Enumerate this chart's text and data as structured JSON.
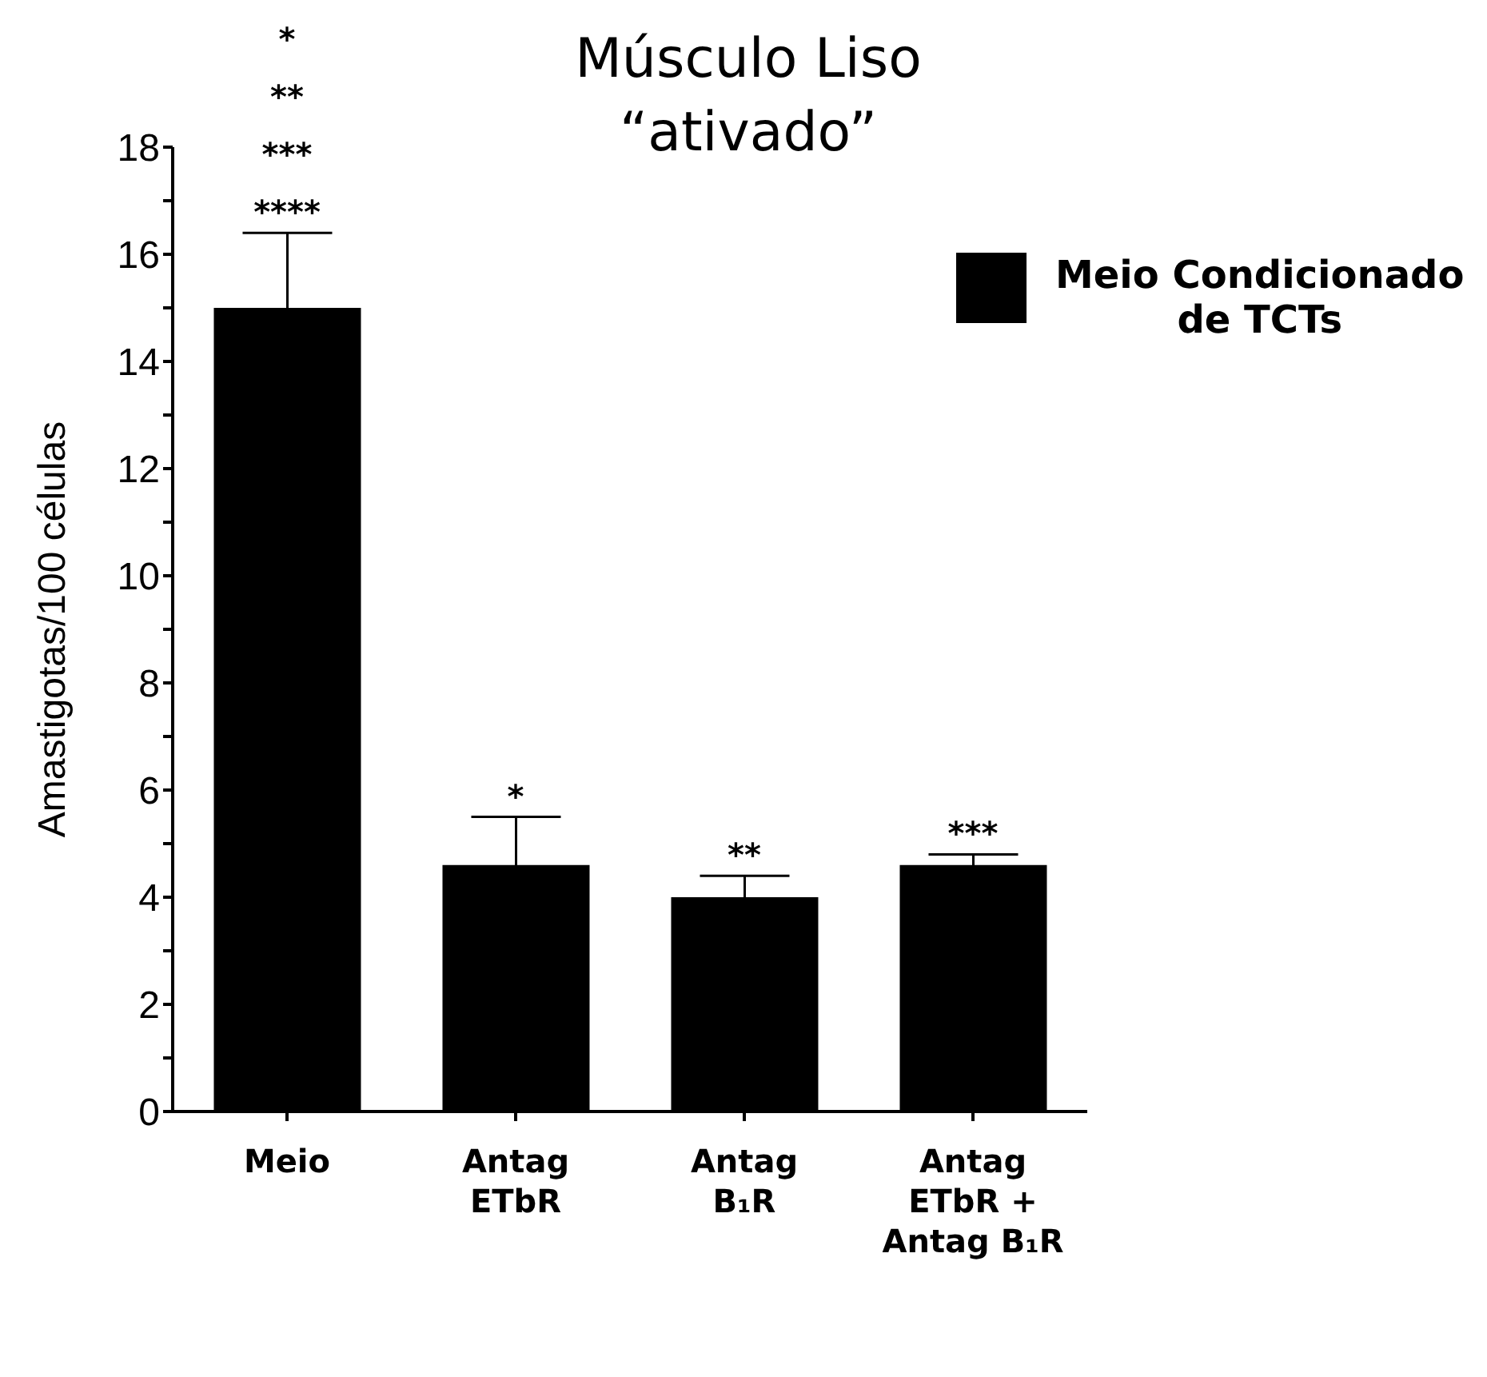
{
  "chart_data": {
    "type": "bar",
    "title": "Músculo Liso\n“ativado”",
    "ylabel": "Amastigotas/100 células",
    "categories": [
      "Meio",
      "Antag\nETbR",
      "Antag\nB₁R",
      "Antag\nETbR +\nAntag B₁R"
    ],
    "series": [
      {
        "name": "Meio Condicionado\nde TCTs",
        "color": "#000000",
        "values": [
          15.0,
          4.6,
          4.0,
          4.6
        ],
        "errors": [
          1.4,
          0.9,
          0.4,
          0.2
        ]
      }
    ],
    "ylim": [
      0,
      18
    ],
    "yticks": [
      0,
      {
        "value": 1,
        "label": null
      },
      2,
      {
        "value": 3,
        "label": null
      },
      4,
      {
        "value": 5,
        "label": null
      },
      6,
      {
        "value": 7,
        "label": null
      },
      8,
      {
        "value": 9,
        "label": null
      },
      10,
      {
        "value": 11,
        "label": null
      },
      12,
      {
        "value": 13,
        "label": null
      },
      14,
      {
        "value": 15,
        "label": null
      },
      16,
      {
        "value": 17,
        "label": null
      },
      18
    ],
    "legend": "top right",
    "annotations": [
      "*\n**\n***\n****",
      "*",
      "**",
      "***"
    ]
  }
}
